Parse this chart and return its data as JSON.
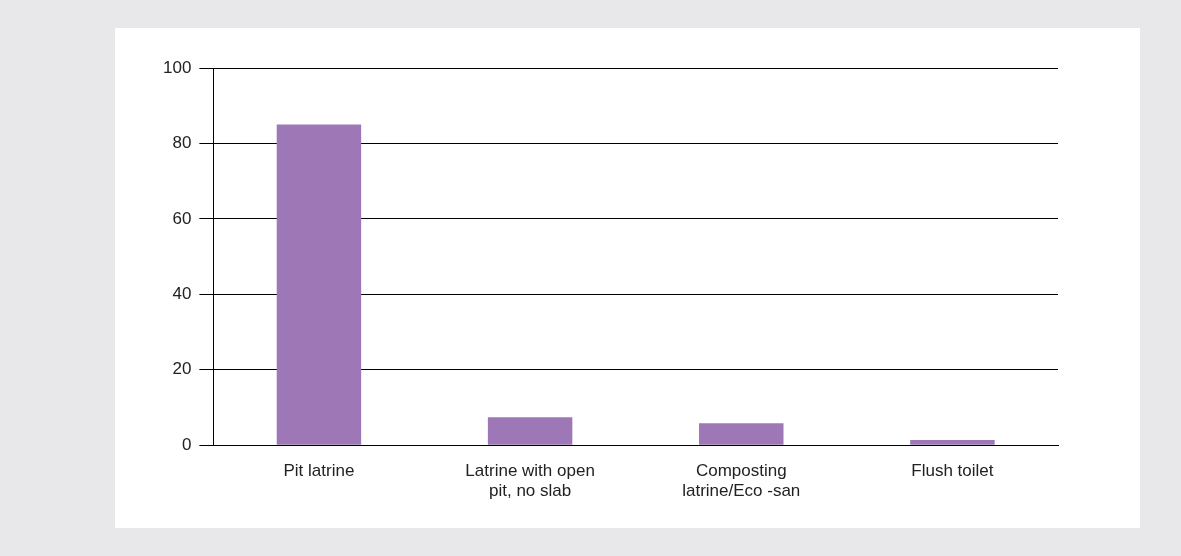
{
  "chart_data": {
    "type": "bar",
    "categories": [
      "Pit latrine",
      "Latrine with open pit, no slab",
      "Composting latrine/Eco -san",
      "Flush toilet"
    ],
    "values": [
      85,
      7.4,
      5.8,
      1.4
    ],
    "color": "#9e78b6",
    "ylim": [
      0,
      100
    ],
    "yticks": [
      0,
      20,
      40,
      60,
      80,
      100
    ],
    "grid": "y",
    "legend": false
  }
}
